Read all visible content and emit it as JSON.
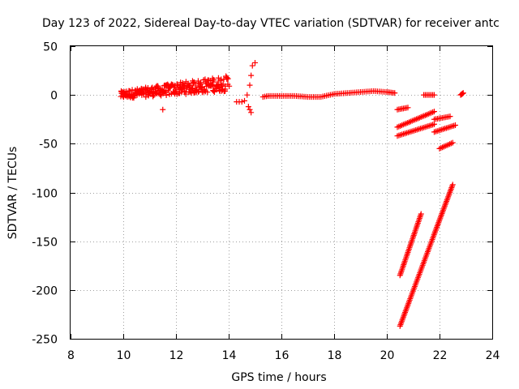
{
  "chart_data": {
    "type": "scatter",
    "title": "Day 123 of 2022, Sidereal Day-to-day VTEC variation (SDTVAR) for receiver antc",
    "xlabel": "GPS time / hours",
    "ylabel": "SDTVAR / TECUs",
    "xlim": [
      8,
      24
    ],
    "ylim": [
      -250,
      50
    ],
    "xticks": [
      "8",
      "10",
      "12",
      "14",
      "16",
      "18",
      "20",
      "22",
      "24"
    ],
    "yticks": [
      "50",
      "0",
      "-50",
      "-100",
      "-150",
      "-200",
      "-250"
    ],
    "grid": true,
    "marker": "plus",
    "color": "#ff0000",
    "series": [
      {
        "name": "noisy-daytime",
        "kind": "scatter-band",
        "x_range": [
          9.9,
          14.0
        ],
        "y_center": 0,
        "y_spread_start": 8,
        "y_spread_end": 16,
        "y_trend_end": 12
      },
      {
        "name": "spike-14.5",
        "kind": "points",
        "x": [
          14.3,
          14.4,
          14.5,
          14.6,
          14.7,
          14.8,
          14.85,
          14.9,
          15.0,
          14.75,
          14.8,
          14.85
        ],
        "y": [
          -7,
          -7,
          -7,
          -6,
          0,
          10,
          20,
          30,
          33,
          -12,
          -15,
          -18
        ]
      },
      {
        "name": "extra-point",
        "kind": "points",
        "x": [
          11.5
        ],
        "y": [
          -15
        ]
      },
      {
        "name": "smooth-night",
        "kind": "line-points",
        "x": [
          15.3,
          15.5,
          16,
          16.5,
          17,
          17.5,
          18,
          18.5,
          19,
          19.5,
          20,
          20.3
        ],
        "y": [
          -2,
          -1,
          -1,
          -1,
          -2,
          -2,
          1,
          2,
          3,
          4,
          3,
          2
        ]
      },
      {
        "name": "track-a",
        "kind": "segment",
        "x": [
          20.4,
          20.8
        ],
        "y": [
          -15,
          -13
        ]
      },
      {
        "name": "track-b",
        "kind": "segment",
        "x": [
          20.4,
          21.8
        ],
        "y": [
          -33,
          -17
        ]
      },
      {
        "name": "track-c",
        "kind": "segment",
        "x": [
          20.4,
          21.8
        ],
        "y": [
          -42,
          -30
        ]
      },
      {
        "name": "track-d",
        "kind": "segment",
        "x": [
          21.4,
          21.8
        ],
        "y": [
          0,
          0
        ]
      },
      {
        "name": "track-e",
        "kind": "segment",
        "x": [
          21.8,
          22.4
        ],
        "y": [
          -25,
          -22
        ]
      },
      {
        "name": "track-f",
        "kind": "segment",
        "x": [
          21.8,
          22.6
        ],
        "y": [
          -38,
          -31
        ]
      },
      {
        "name": "track-g",
        "kind": "segment",
        "x": [
          22.0,
          22.5
        ],
        "y": [
          -55,
          -49
        ]
      },
      {
        "name": "track-h",
        "kind": "segment",
        "x": [
          22.8,
          22.9
        ],
        "y": [
          0,
          2
        ]
      },
      {
        "name": "steep-1",
        "kind": "segment",
        "x": [
          20.5,
          21.3
        ],
        "y": [
          -185,
          -122
        ]
      },
      {
        "name": "steep-2",
        "kind": "segment",
        "x": [
          20.5,
          22.5
        ],
        "y": [
          -237,
          -92
        ]
      }
    ]
  }
}
